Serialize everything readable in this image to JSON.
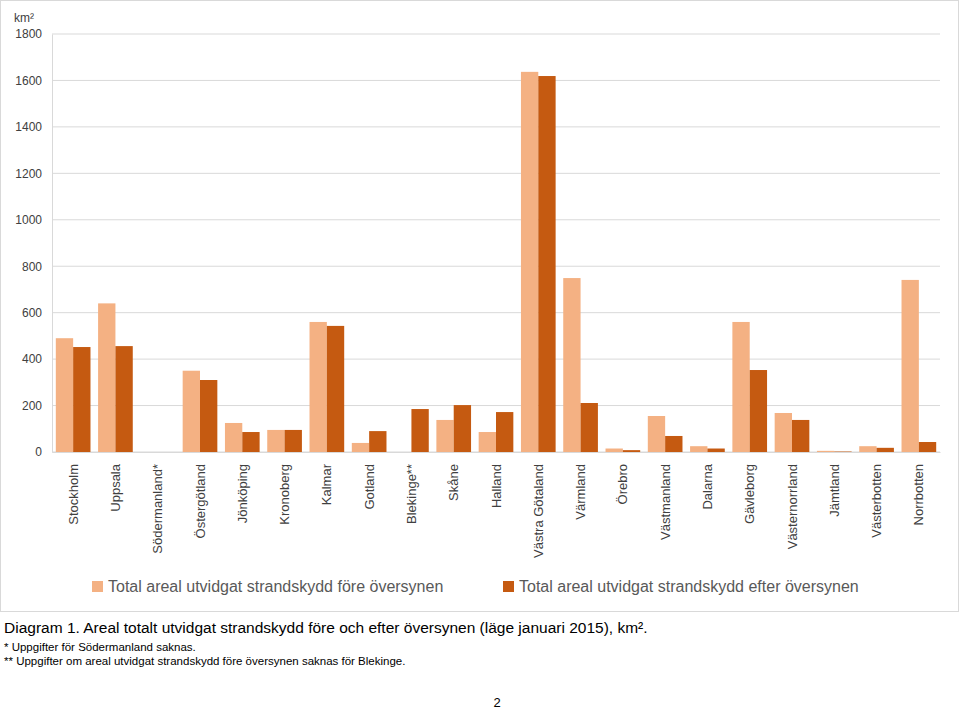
{
  "chart_data": {
    "type": "bar",
    "title": "Diagram 1. Areal totalt utvidgat strandskydd före och efter översynen (läge januari 2015), km².",
    "y_label": "km²",
    "annotations": [
      "* Uppgifter för Södermanland saknas.",
      "** Uppgifter om areal utvidgat strandskydd före översynen saknas för Blekinge.",
      "2"
    ],
    "categories": [
      "Stockholm",
      "Uppsala",
      "Södermanland*",
      "Östergötland",
      "Jönköping",
      "Kronoberg",
      "Kalmar",
      "Gotland",
      "Blekinge**",
      "Skåne",
      "Halland",
      "Västra Götaland",
      "Värmland",
      "Örebro",
      "Västmanland",
      "Dalarna",
      "Gävleborg",
      "Västernorrland",
      "Jämtland",
      "Västerbotten",
      "Norrbotten"
    ],
    "series": [
      {
        "name": "Total areal utvidgat strandskydd före översynen",
        "color": "#f4b183",
        "values": [
          490,
          640,
          null,
          350,
          125,
          95,
          560,
          39,
          null,
          138,
          86,
          1637,
          749,
          15,
          155,
          25,
          560,
          168,
          5,
          25,
          741
        ]
      },
      {
        "name": "Total areal utvidgat strandskydd efter översynen",
        "color": "#c55a11",
        "values": [
          452,
          456,
          null,
          310,
          86,
          95,
          543,
          90,
          185,
          202,
          172,
          1619,
          211,
          8,
          69,
          15,
          353,
          138,
          2,
          18,
          43
        ]
      }
    ],
    "ylim": [
      0,
      1800
    ],
    "yticks": [
      0,
      200,
      400,
      600,
      800,
      1000,
      1200,
      1400,
      1600,
      1800
    ],
    "grid": true,
    "legend": "bottom"
  }
}
